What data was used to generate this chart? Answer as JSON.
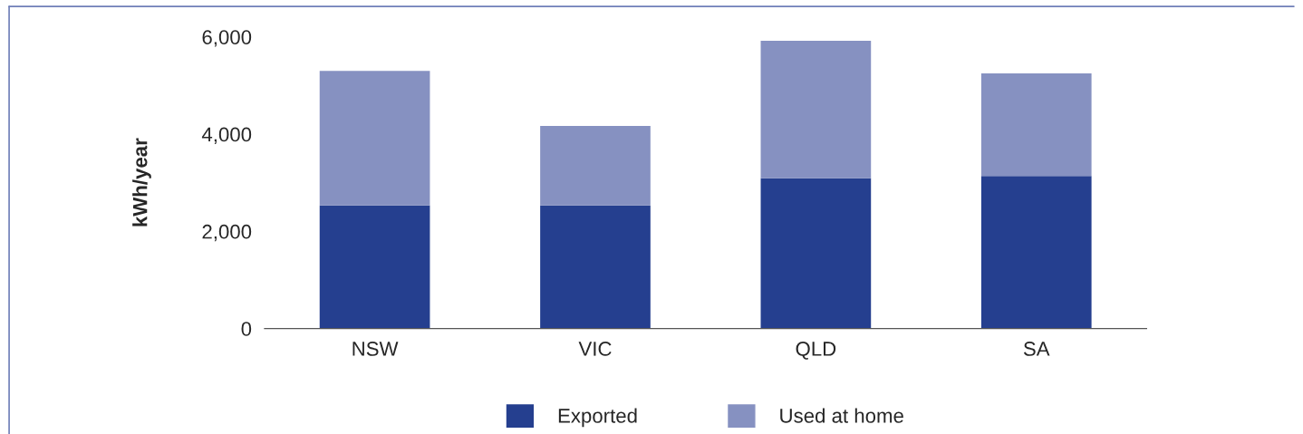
{
  "chart_data": {
    "type": "bar",
    "stacked": true,
    "ylabel": "kWh/year",
    "categories": [
      "NSW",
      "VIC",
      "QLD",
      "SA"
    ],
    "series": [
      {
        "name": "Exported",
        "color": "#253f8f",
        "values": [
          2530,
          2530,
          3090,
          3140
        ]
      },
      {
        "name": "Used at home",
        "color": "#8691c1",
        "values": [
          2770,
          1640,
          2830,
          2110
        ]
      }
    ],
    "ylim": [
      0,
      6000
    ],
    "yticks": [
      {
        "value": 0,
        "label": "0"
      },
      {
        "value": 2000,
        "label": "2,000"
      },
      {
        "value": 4000,
        "label": "4,000"
      },
      {
        "value": 6000,
        "label": "6,000"
      }
    ],
    "grid": false,
    "legend": "bottom"
  }
}
